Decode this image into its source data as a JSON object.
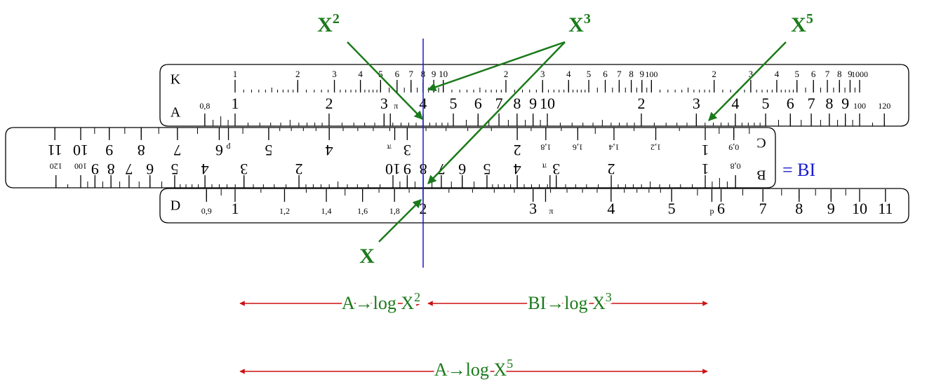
{
  "annotations": {
    "x2": {
      "base": "X",
      "exp": "2"
    },
    "x3": {
      "base": "X",
      "exp": "3"
    },
    "x5": {
      "base": "X",
      "exp": "5"
    },
    "x": {
      "base": "X"
    },
    "bi": "= BI",
    "row1_left": {
      "text": "A→log X",
      "exp": "2"
    },
    "row1_right": {
      "text": "BI→log X",
      "exp": "3"
    },
    "row2": {
      "text": "A→log X",
      "exp": "5"
    }
  },
  "scales": {
    "K": {
      "name": "K",
      "ticks": [
        {
          "value": 1,
          "label": "1"
        },
        {
          "value": 2,
          "label": "2"
        },
        {
          "value": 3,
          "label": "3"
        },
        {
          "value": 4,
          "label": "4"
        },
        {
          "value": 5,
          "label": "5"
        },
        {
          "value": 6,
          "label": "6"
        },
        {
          "value": 7,
          "label": "7"
        },
        {
          "value": 8,
          "label": "8"
        },
        {
          "value": 9,
          "label": "9"
        },
        {
          "value": 10,
          "label": "10"
        },
        {
          "value": 20,
          "label": "2"
        },
        {
          "value": 30,
          "label": "3"
        },
        {
          "value": 40,
          "label": "4"
        },
        {
          "value": 50,
          "label": "5"
        },
        {
          "value": 60,
          "label": "6"
        },
        {
          "value": 70,
          "label": "7"
        },
        {
          "value": 80,
          "label": "8"
        },
        {
          "value": 90,
          "label": "9"
        },
        {
          "value": 100,
          "label": "100"
        },
        {
          "value": 200,
          "label": "2"
        },
        {
          "value": 300,
          "label": "3"
        },
        {
          "value": 400,
          "label": "4"
        },
        {
          "value": 500,
          "label": "5"
        },
        {
          "value": 600,
          "label": "6"
        },
        {
          "value": 700,
          "label": "7"
        },
        {
          "value": 800,
          "label": "8"
        },
        {
          "value": 900,
          "label": "9"
        },
        {
          "value": 1000,
          "label": "1000"
        }
      ]
    },
    "A": {
      "name": "A",
      "ticks": [
        {
          "value": 0.8,
          "label": "0,8"
        },
        1,
        2,
        {
          "value": 3,
          "label": "3"
        },
        {
          "value": 3.1416,
          "label": "π"
        },
        4,
        5,
        6,
        7,
        8,
        9,
        10,
        {
          "value": 20,
          "label": "2"
        },
        {
          "value": 30,
          "label": "3"
        },
        {
          "value": 40,
          "label": "4"
        },
        {
          "value": 50,
          "label": "5"
        },
        {
          "value": 60,
          "label": "6"
        },
        {
          "value": 70,
          "label": "7"
        },
        {
          "value": 80,
          "label": "8"
        },
        {
          "value": 90,
          "label": "9"
        },
        100,
        120
      ]
    },
    "C": {
      "name": "C",
      "ticks": [
        {
          "value": 0.9,
          "label": "0,9"
        },
        1,
        {
          "value": 1.2,
          "label": "1,2"
        },
        {
          "value": 1.4,
          "label": "1,4"
        },
        {
          "value": 1.6,
          "label": "1,6"
        },
        {
          "value": 1.8,
          "label": "1,8"
        },
        2,
        3,
        {
          "value": 3.1416,
          "label": "π"
        },
        4,
        5,
        {
          "value": 5.8,
          "label": "p"
        },
        6,
        7,
        8,
        9,
        10,
        11
      ]
    },
    "B": {
      "name": "B",
      "ticks": [
        {
          "value": 0.8,
          "label": "0,8"
        },
        1,
        2,
        3,
        {
          "value": 3.1416,
          "label": "π"
        },
        4,
        5,
        6,
        7,
        8,
        9,
        10,
        {
          "value": 20,
          "label": "2"
        },
        {
          "value": 30,
          "label": "3"
        },
        {
          "value": 40,
          "label": "4"
        },
        {
          "value": 50,
          "label": "5"
        },
        {
          "value": 60,
          "label": "6"
        },
        {
          "value": 70,
          "label": "7"
        },
        {
          "value": 80,
          "label": "8"
        },
        {
          "value": 90,
          "label": "9"
        },
        100,
        120
      ]
    },
    "D": {
      "name": "D",
      "ticks": [
        {
          "value": 0.9,
          "label": "0,9"
        },
        1,
        {
          "value": 1.2,
          "label": "1,2"
        },
        {
          "value": 1.4,
          "label": "1,4"
        },
        {
          "value": 1.6,
          "label": "1,6"
        },
        {
          "value": 1.8,
          "label": "1,8"
        },
        2,
        3,
        {
          "value": 3.1416,
          "label": "π"
        },
        4,
        5,
        {
          "value": 5.8,
          "label": "p"
        },
        6,
        7,
        8,
        9,
        10,
        11
      ]
    }
  }
}
